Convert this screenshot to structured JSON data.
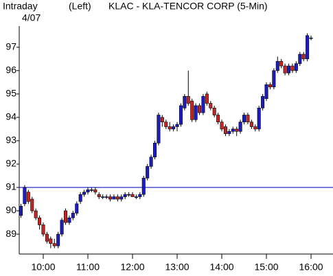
{
  "chart_data": {
    "type": "candlestick",
    "title": "KLAC - KLA-TENCOR CORP (5-Min)",
    "period_label": "Intraday",
    "date_label": "4/07",
    "axis_side_label": "(Left)",
    "x": [
      570,
      575,
      580,
      585,
      590,
      595,
      600,
      605,
      610,
      615,
      620,
      625,
      630,
      635,
      640,
      645,
      650,
      655,
      660,
      665,
      670,
      675,
      680,
      685,
      690,
      695,
      700,
      705,
      710,
      715,
      720,
      725,
      730,
      735,
      740,
      745,
      750,
      755,
      760,
      765,
      770,
      775,
      780,
      785,
      790,
      795,
      800,
      805,
      810,
      815,
      820,
      825,
      830,
      835,
      840,
      845,
      850,
      855,
      860,
      865,
      870,
      875,
      880,
      885,
      890,
      895,
      900,
      905,
      910,
      915,
      920,
      925,
      930,
      935,
      940,
      945,
      950,
      955,
      960
    ],
    "open": [
      89.8,
      90.3,
      90.8,
      90.5,
      90.0,
      89.7,
      89.4,
      89.0,
      88.8,
      88.6,
      88.5,
      89.0,
      90.0,
      89.5,
      89.7,
      89.9,
      90.4,
      90.7,
      90.8,
      90.9,
      90.9,
      90.7,
      90.6,
      90.6,
      90.6,
      90.5,
      90.6,
      90.5,
      90.6,
      90.7,
      90.7,
      90.6,
      90.6,
      90.7,
      91.4,
      91.9,
      92.3,
      92.9,
      94.0,
      93.8,
      93.6,
      93.5,
      93.6,
      93.7,
      94.4,
      94.9,
      94.7,
      93.9,
      94.5,
      94.2,
      95.0,
      94.6,
      94.4,
      94.1,
      93.8,
      93.6,
      93.3,
      93.4,
      93.5,
      93.4,
      93.8,
      94.1,
      93.8,
      93.6,
      93.5,
      94.4,
      94.8,
      95.4,
      95.3,
      96.0,
      96.4,
      96.2,
      95.9,
      96.2,
      96.0,
      96.3,
      96.7,
      96.5,
      97.4
    ],
    "high": [
      90.3,
      91.1,
      90.9,
      90.6,
      90.1,
      89.8,
      89.5,
      89.1,
      88.9,
      88.8,
      89.1,
      89.7,
      90.1,
      89.8,
      90.0,
      90.4,
      90.8,
      90.9,
      91.0,
      91.0,
      91.0,
      90.8,
      90.7,
      90.7,
      90.7,
      90.7,
      90.7,
      90.7,
      90.8,
      90.8,
      90.8,
      90.7,
      90.8,
      91.5,
      92.0,
      92.4,
      93.0,
      94.2,
      94.1,
      93.9,
      93.8,
      93.7,
      93.8,
      94.6,
      95.0,
      96.0,
      94.8,
      94.6,
      94.6,
      95.0,
      95.1,
      94.7,
      94.5,
      94.2,
      93.9,
      93.7,
      93.5,
      93.6,
      93.6,
      93.9,
      94.2,
      94.2,
      93.9,
      93.7,
      94.5,
      95.0,
      95.5,
      95.5,
      96.1,
      96.6,
      96.5,
      96.3,
      96.3,
      96.3,
      96.4,
      96.8,
      96.8,
      97.6,
      97.5
    ],
    "low": [
      89.7,
      90.2,
      90.3,
      89.9,
      89.6,
      89.2,
      88.9,
      88.6,
      88.4,
      88.4,
      88.4,
      88.9,
      89.4,
      89.4,
      89.6,
      89.8,
      90.3,
      90.6,
      90.7,
      90.8,
      90.7,
      90.5,
      90.5,
      90.5,
      90.4,
      90.5,
      90.4,
      90.4,
      90.5,
      90.6,
      90.6,
      90.5,
      90.5,
      90.6,
      91.3,
      91.8,
      92.2,
      92.8,
      93.6,
      93.5,
      93.4,
      93.4,
      93.4,
      93.6,
      94.3,
      94.5,
      93.8,
      93.8,
      94.1,
      94.1,
      94.5,
      94.3,
      94.0,
      93.7,
      93.4,
      93.2,
      93.2,
      93.3,
      93.2,
      93.3,
      93.7,
      93.7,
      93.5,
      93.4,
      93.4,
      94.3,
      94.7,
      95.2,
      95.2,
      95.9,
      96.1,
      95.8,
      95.8,
      95.9,
      95.9,
      96.2,
      96.4,
      96.4,
      97.3
    ],
    "close": [
      90.2,
      91.0,
      90.4,
      90.0,
      89.7,
      89.4,
      89.0,
      88.7,
      88.6,
      88.5,
      89.0,
      89.6,
      89.5,
      89.7,
      89.9,
      90.3,
      90.7,
      90.8,
      90.9,
      90.9,
      90.8,
      90.6,
      90.6,
      90.6,
      90.5,
      90.6,
      90.5,
      90.6,
      90.7,
      90.7,
      90.6,
      90.6,
      90.7,
      91.4,
      91.9,
      92.3,
      92.9,
      94.1,
      93.8,
      93.6,
      93.5,
      93.6,
      93.7,
      94.5,
      94.9,
      94.6,
      93.9,
      94.5,
      94.2,
      94.9,
      94.6,
      94.4,
      94.1,
      93.8,
      93.5,
      93.3,
      93.4,
      93.5,
      93.4,
      93.8,
      94.1,
      93.8,
      93.6,
      93.5,
      94.4,
      94.9,
      95.4,
      95.3,
      96.0,
      96.4,
      96.2,
      95.9,
      96.2,
      96.0,
      96.3,
      96.7,
      96.5,
      97.5,
      97.4
    ],
    "up_color": "#1c1cc0",
    "down_color": "#c42626",
    "reference_line": {
      "value": 91,
      "color": "#2a2ac8"
    },
    "xlim": [
      567.7,
      989.5
    ],
    "xticks": [
      {
        "value": 600,
        "label": "10:00"
      },
      {
        "value": 660,
        "label": "11:00"
      },
      {
        "value": 720,
        "label": "12:00"
      },
      {
        "value": 780,
        "label": "13:00"
      },
      {
        "value": 840,
        "label": "14:00"
      },
      {
        "value": 900,
        "label": "15:00"
      },
      {
        "value": 960,
        "label": "16:00"
      }
    ],
    "ylim": [
      88.15,
      97.7
    ],
    "yticks": [
      89,
      90,
      91,
      92,
      93,
      94,
      95,
      96,
      97
    ]
  }
}
